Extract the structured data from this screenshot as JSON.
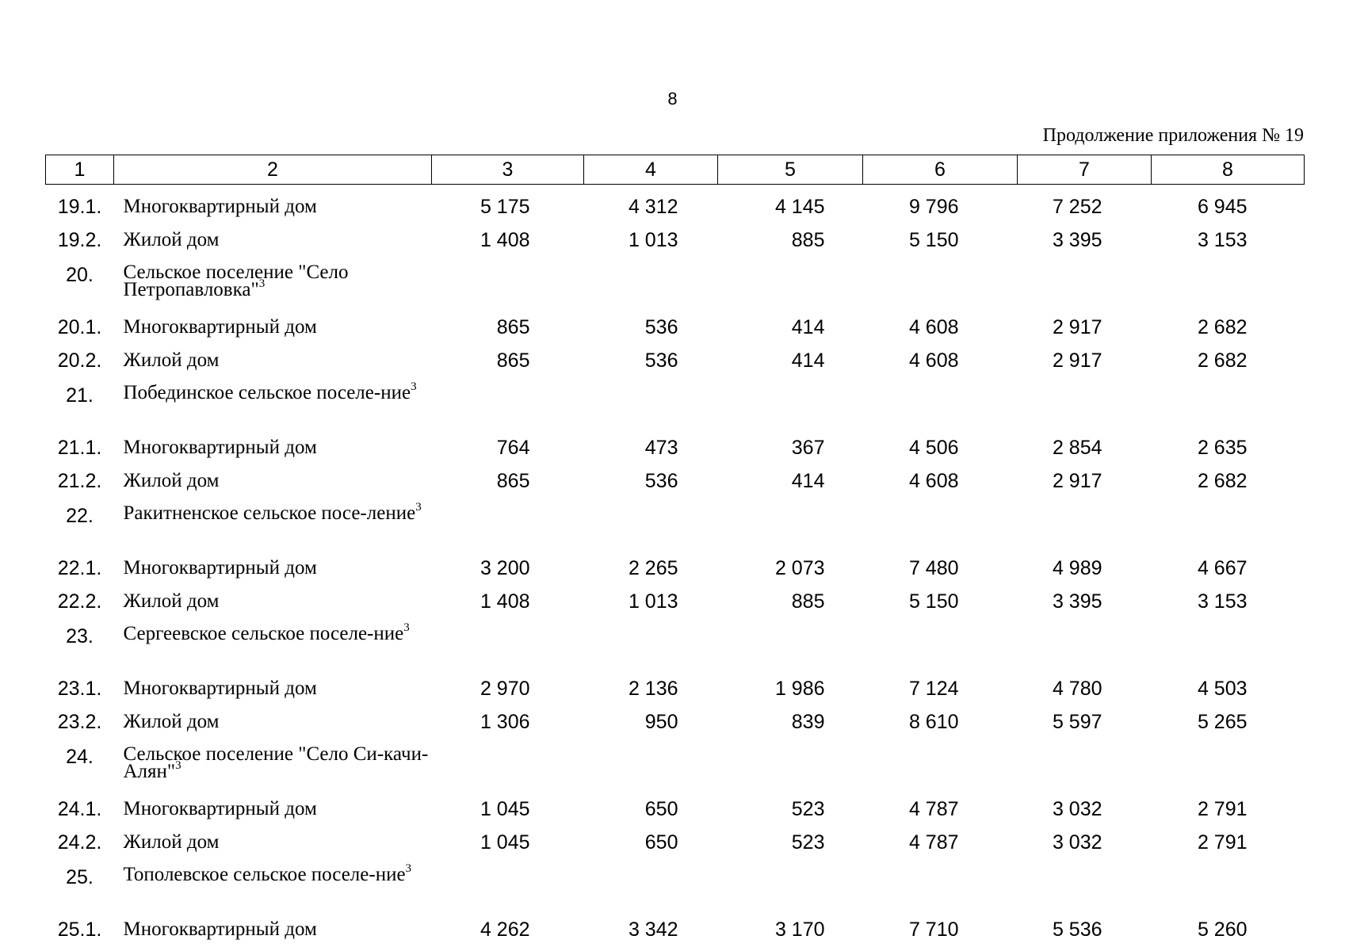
{
  "page_number": "8",
  "continuation_title": "Продолжение приложения № 19",
  "columns": [
    "1",
    "2",
    "3",
    "4",
    "5",
    "6",
    "7",
    "8"
  ],
  "rows": [
    {
      "kind": "item",
      "num": "19.1.",
      "name": "Многоквартирный дом",
      "vals": [
        "5 175",
        "4 312",
        "4 145",
        "9 796",
        "7 252",
        "6 945"
      ]
    },
    {
      "kind": "item",
      "num": "19.2.",
      "name": "Жилой дом",
      "vals": [
        "1 408",
        "1 013",
        "885",
        "5 150",
        "3 395",
        "3 153"
      ]
    },
    {
      "kind": "group",
      "num": "20.",
      "name": "Сельское поселение \"Село Петропавловка\"",
      "sup": "3"
    },
    {
      "kind": "item",
      "num": "20.1.",
      "name": "Многоквартирный дом",
      "vals": [
        "865",
        "536",
        "414",
        "4 608",
        "2 917",
        "2 682"
      ]
    },
    {
      "kind": "item",
      "num": "20.2.",
      "name": "Жилой дом",
      "vals": [
        "865",
        "536",
        "414",
        "4 608",
        "2 917",
        "2 682"
      ]
    },
    {
      "kind": "group",
      "num": "21.",
      "name": "Побединское сельское поселе-ние",
      "sup": "3"
    },
    {
      "kind": "item",
      "num": "21.1.",
      "name": "Многоквартирный дом",
      "vals": [
        "764",
        "473",
        "367",
        "4 506",
        "2 854",
        "2 635"
      ]
    },
    {
      "kind": "item",
      "num": "21.2.",
      "name": "Жилой дом",
      "vals": [
        "865",
        "536",
        "414",
        "4 608",
        "2 917",
        "2 682"
      ]
    },
    {
      "kind": "group",
      "num": "22.",
      "name": "Ракитненское сельское посе-ление",
      "sup": "3"
    },
    {
      "kind": "item",
      "num": "22.1.",
      "name": "Многоквартирный дом",
      "vals": [
        "3 200",
        "2 265",
        "2 073",
        "7 480",
        "4 989",
        "4 667"
      ]
    },
    {
      "kind": "item",
      "num": "22.2.",
      "name": "Жилой дом",
      "vals": [
        "1 408",
        "1 013",
        "885",
        "5 150",
        "3 395",
        "3 153"
      ]
    },
    {
      "kind": "group",
      "num": "23.",
      "name": "Сергеевское сельское поселе-ние",
      "sup": "3"
    },
    {
      "kind": "item",
      "num": "23.1.",
      "name": "Многоквартирный дом",
      "vals": [
        "2 970",
        "2 136",
        "1 986",
        "7 124",
        "4 780",
        "4 503"
      ]
    },
    {
      "kind": "item",
      "num": "23.2.",
      "name": "Жилой дом",
      "vals": [
        "1 306",
        "950",
        "839",
        "8 610",
        "5 597",
        "5 265"
      ]
    },
    {
      "kind": "group",
      "num": "24.",
      "name": "Сельское поселение \"Село Си-качи-Алян\"",
      "sup": "3"
    },
    {
      "kind": "item",
      "num": "24.1.",
      "name": "Многоквартирный дом",
      "vals": [
        "1 045",
        "650",
        "523",
        "4 787",
        "3 032",
        "2 791"
      ]
    },
    {
      "kind": "item",
      "num": "24.2.",
      "name": "Жилой дом",
      "vals": [
        "1 045",
        "650",
        "523",
        "4 787",
        "3 032",
        "2 791"
      ]
    },
    {
      "kind": "group",
      "num": "25.",
      "name": "Тополевское сельское поселе-ние",
      "sup": "3"
    },
    {
      "kind": "item",
      "num": "25.1.",
      "name": "Многоквартирный дом",
      "vals": [
        "4 262",
        "3 342",
        "3 170",
        "7 710",
        "5 536",
        "5 260"
      ]
    }
  ]
}
